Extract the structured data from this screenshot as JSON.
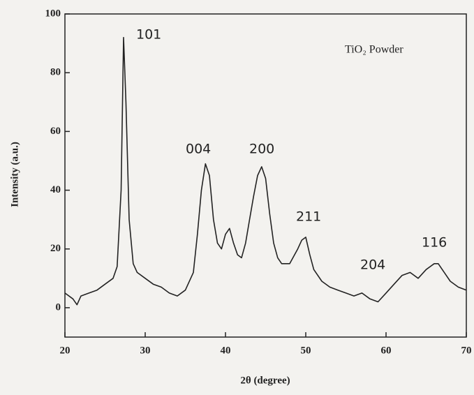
{
  "chart_data": {
    "type": "line",
    "x_label": "2θ (degree)",
    "y_label": "Intensity (a.u.)",
    "annotations": [
      "101",
      "004",
      "200",
      "211",
      "204",
      "116",
      "TiO₂ Powder"
    ],
    "x": [
      20,
      21,
      21.5,
      22,
      23,
      24,
      25,
      26,
      26.5,
      27,
      27.3,
      27.6,
      28,
      28.5,
      29,
      30,
      31,
      32,
      33,
      34,
      35,
      36,
      36.5,
      37,
      37.5,
      38,
      38.5,
      39,
      39.5,
      40,
      40.5,
      41,
      41.5,
      42,
      42.5,
      43,
      43.5,
      44,
      44.5,
      45,
      45.5,
      46,
      46.5,
      47,
      48,
      49,
      49.5,
      50,
      50.5,
      51,
      52,
      53,
      54,
      55,
      56,
      57,
      58,
      59,
      60,
      61,
      62,
      63,
      64,
      65,
      66,
      66.5,
      67,
      68,
      69,
      70
    ],
    "series": [
      {
        "color": "#222222",
        "values": [
          5,
          3,
          1,
          4,
          5,
          6,
          8,
          10,
          14,
          40,
          92,
          70,
          30,
          15,
          12,
          10,
          8,
          7,
          5,
          4,
          6,
          12,
          25,
          40,
          49,
          45,
          30,
          22,
          20,
          25,
          27,
          22,
          18,
          17,
          22,
          30,
          38,
          45,
          48,
          44,
          32,
          22,
          17,
          15,
          15,
          20,
          23,
          24,
          18,
          13,
          9,
          7,
          6,
          5,
          4,
          5,
          3,
          2,
          5,
          8,
          11,
          12,
          10,
          13,
          15,
          15,
          13,
          9,
          7,
          6
        ]
      }
    ],
    "xlim": [
      20,
      70
    ],
    "ylim": [
      -10,
      100
    ],
    "xticks": [
      20,
      30,
      40,
      50,
      60,
      70
    ],
    "yticks": [
      0,
      20,
      40,
      60,
      80,
      100
    ]
  }
}
